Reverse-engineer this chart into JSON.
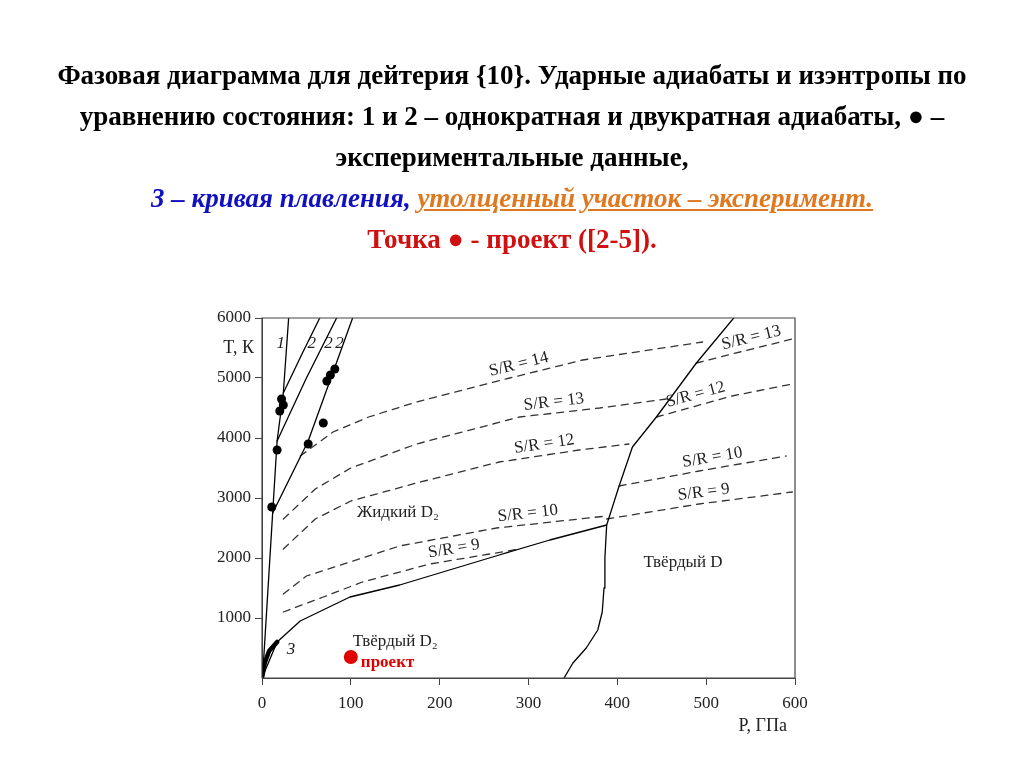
{
  "chart_data": {
    "type": "line",
    "title": "Фазовая диаграмма для дейтерия {10}. Ударные адиабаты и изэнтропы по уравнению состояния: 1 и 2 – однократная и двукратная адиабаты, ● – экспериментальные данные,",
    "xlabel": "P, ГПа",
    "ylabel": "T, К",
    "xlim": [
      0,
      600
    ],
    "xticks": [
      0,
      100,
      200,
      300,
      400,
      500,
      600
    ],
    "ylim": [
      0,
      6000
    ],
    "yticks": [
      1000,
      2000,
      3000,
      4000,
      5000,
      6000
    ],
    "marker": "none",
    "series": [
      {
        "type": "line",
        "color": "#000000",
        "x": [
          0,
          17,
          43,
          99,
          155,
          211,
          267,
          324,
          388
        ],
        "values": [
          0,
          600,
          950,
          1350,
          1550,
          1800,
          2050,
          2300,
          2550
        ]
      },
      {
        "type": "line",
        "name": "3",
        "color": "#000000",
        "x": [
          0,
          3,
          8,
          17
        ],
        "values": [
          0,
          250,
          450,
          600
        ]
      },
      {
        "type": "line",
        "color": "#000000",
        "x": [
          340,
          350,
          365,
          378,
          383,
          385,
          386,
          388,
          402,
          417,
          444,
          489,
          531
        ],
        "values": [
          0,
          250,
          500,
          800,
          1100,
          1500,
          2000,
          2550,
          3200,
          3850,
          4350,
          5250,
          6000
        ]
      },
      {
        "type": "line",
        "name": "1",
        "color": "#000000",
        "x": [
          1,
          12,
          17,
          24,
          30
        ],
        "values": [
          100,
          2750,
          3950,
          4750,
          6000
        ]
      },
      {
        "type": "line",
        "name": "2",
        "color": "#000000",
        "x": [
          24,
          45,
          65
        ],
        "values": [
          4750,
          5400,
          6000
        ]
      },
      {
        "type": "line",
        "name": "2",
        "color": "#000000",
        "x": [
          17,
          50,
          84
        ],
        "values": [
          3950,
          5000,
          6000
        ]
      },
      {
        "type": "line",
        "name": "2",
        "color": "#000000",
        "x": [
          12,
          52,
          102
        ],
        "values": [
          2750,
          3950,
          6000
        ]
      },
      {
        "type": "line",
        "name": "S/R = 14",
        "color": "#333333",
        "line_style": "dashed",
        "x": [
          43,
          80,
          120,
          174,
          279,
          361,
          496
        ],
        "values": [
          3700,
          4100,
          4350,
          4600,
          5000,
          5300,
          5600
        ]
      },
      {
        "type": "line",
        "name": "S/R = 13",
        "color": "#333333",
        "line_style": "dashed",
        "x": [
          24,
          60,
          100,
          174,
          290,
          380,
          455
        ],
        "values": [
          2650,
          3150,
          3500,
          3900,
          4350,
          4500,
          4650
        ]
      },
      {
        "type": "line",
        "name": "S/R = 12",
        "color": "#333333",
        "line_style": "dashed",
        "x": [
          24,
          60,
          100,
          174,
          267,
          357,
          413
        ],
        "values": [
          2150,
          2650,
          2950,
          3250,
          3600,
          3800,
          3900
        ]
      },
      {
        "type": "line",
        "name": "S/R = 10",
        "color": "#333333",
        "line_style": "dashed",
        "x": [
          24,
          50,
          113,
          155,
          264,
          388
        ],
        "values": [
          1400,
          1700,
          2000,
          2200,
          2500,
          2700
        ]
      },
      {
        "type": "line",
        "name": "S/R = 9",
        "color": "#333333",
        "line_style": "dashed",
        "x": [
          24,
          69,
          113,
          189,
          290
        ],
        "values": [
          1100,
          1350,
          1600,
          1900,
          2150
        ]
      },
      {
        "type": "line",
        "name": "S/R = 13",
        "color": "#333333",
        "line_style": "dashed",
        "x": [
          489,
          529,
          597
        ],
        "values": [
          5250,
          5400,
          5650
        ]
      },
      {
        "type": "line",
        "name": "S/R = 12",
        "color": "#333333",
        "line_style": "dashed",
        "x": [
          444,
          529,
          597
        ],
        "values": [
          4350,
          4700,
          4900
        ]
      },
      {
        "type": "line",
        "name": "S/R = 10",
        "color": "#333333",
        "line_style": "dashed",
        "x": [
          402,
          492,
          590
        ],
        "values": [
          3200,
          3450,
          3700
        ]
      },
      {
        "type": "line",
        "name": "S/R = 9",
        "color": "#333333",
        "line_style": "dashed",
        "x": [
          388,
          492,
          597
        ],
        "values": [
          2650,
          2900,
          3100
        ]
      },
      {
        "type": "scatter",
        "color": "#000000",
        "marker": "circle",
        "x": [
          22,
          24,
          20,
          17,
          11,
          52,
          69,
          73,
          77,
          82
        ],
        "values": [
          4650,
          4550,
          4450,
          3800,
          2850,
          3900,
          4250,
          4950,
          5050,
          5150
        ]
      },
      {
        "type": "scatter",
        "name": "проект",
        "color": "#e00000",
        "marker": "circle",
        "x": [
          100
        ],
        "values": [
          350
        ]
      }
    ],
    "annotations": [
      "3 – кривая плавления,",
      "утолщенный участок – эксперимент.",
      "Точка ● -  проект ([2-5]).",
      "Жидкий D₂",
      "Твёрдый D₂",
      "Твёрдый D"
    ]
  }
}
